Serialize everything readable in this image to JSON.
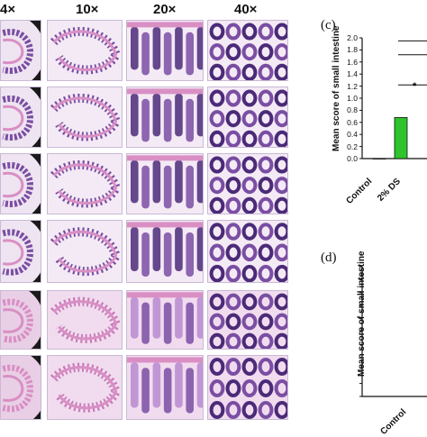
{
  "figure": {
    "magnifications": [
      "4×",
      "10×",
      "20×",
      "40×"
    ]
  },
  "colors": {
    "he_pink": "#d98fc4",
    "he_purple": "#7a4ea3",
    "he_dark": "#4b2a78",
    "bar_green": "#2ec42e"
  },
  "panel_c": {
    "letter": "(c)",
    "ylabel": "Mean score of small intestine",
    "yticks": [
      "0.0",
      "0.2",
      "0.4",
      "0.6",
      "0.8",
      "1.0",
      "1.2",
      "1.4",
      "1.6",
      "1.8",
      "2.0"
    ],
    "categories": [
      "Control",
      "2% DS"
    ],
    "star": "*"
  },
  "panel_d": {
    "letter": "(d)",
    "ylabel": "Mean score of small intestine",
    "categories": [
      "Control"
    ]
  },
  "chart_data": [
    {
      "type": "bar",
      "categories": [
        "Control",
        "2% DS"
      ],
      "values": [
        0.0,
        0.68
      ],
      "ylabel": "Mean score of small intestine",
      "ylim": [
        0,
        2.0
      ],
      "annotations": [
        "*"
      ]
    },
    {
      "type": "bar",
      "categories": [
        "Control"
      ],
      "values": [
        0.0
      ],
      "ylabel": "Mean score of small intestine"
    }
  ]
}
